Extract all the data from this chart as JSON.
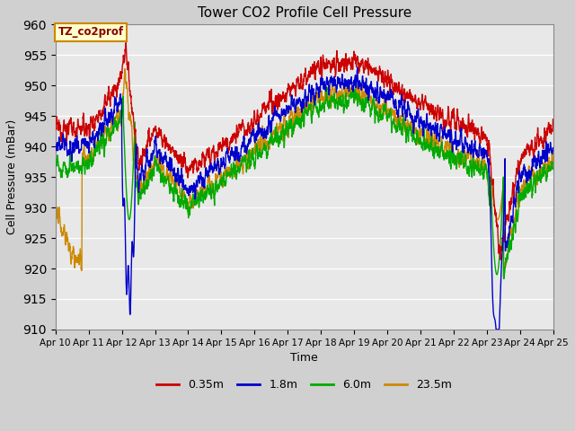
{
  "title": "Tower CO2 Profile Cell Pressure",
  "xlabel": "Time",
  "ylabel": "Cell Pressure (mBar)",
  "ylim": [
    910,
    960
  ],
  "xlim": [
    0,
    15
  ],
  "fig_bg": "#d0d0d0",
  "plot_bg": "#e8e8e8",
  "grid_color": "#ffffff",
  "series_colors": {
    "red": "#cc0000",
    "blue": "#0000cc",
    "green": "#00aa00",
    "orange": "#cc8800"
  },
  "lw": 1.0,
  "x_ticks": [
    0,
    1,
    2,
    3,
    4,
    5,
    6,
    7,
    8,
    9,
    10,
    11,
    12,
    13,
    14,
    15
  ],
  "x_tick_labels": [
    "Apr 10",
    "Apr 11",
    "Apr 12",
    "Apr 13",
    "Apr 14",
    "Apr 15",
    "Apr 16",
    "Apr 17",
    "Apr 18",
    "Apr 19",
    "Apr 20",
    "Apr 21",
    "Apr 22",
    "Apr 23",
    "Apr 24",
    "Apr 25"
  ],
  "yticks": [
    910,
    915,
    920,
    925,
    930,
    935,
    940,
    945,
    950,
    955,
    960
  ],
  "annotation_text": "TZ_co2prof",
  "annotation_bg": "#ffffcc",
  "annotation_border": "#cc8800",
  "legend_labels": [
    "0.35m",
    "1.8m",
    "6.0m",
    "23.5m"
  ]
}
